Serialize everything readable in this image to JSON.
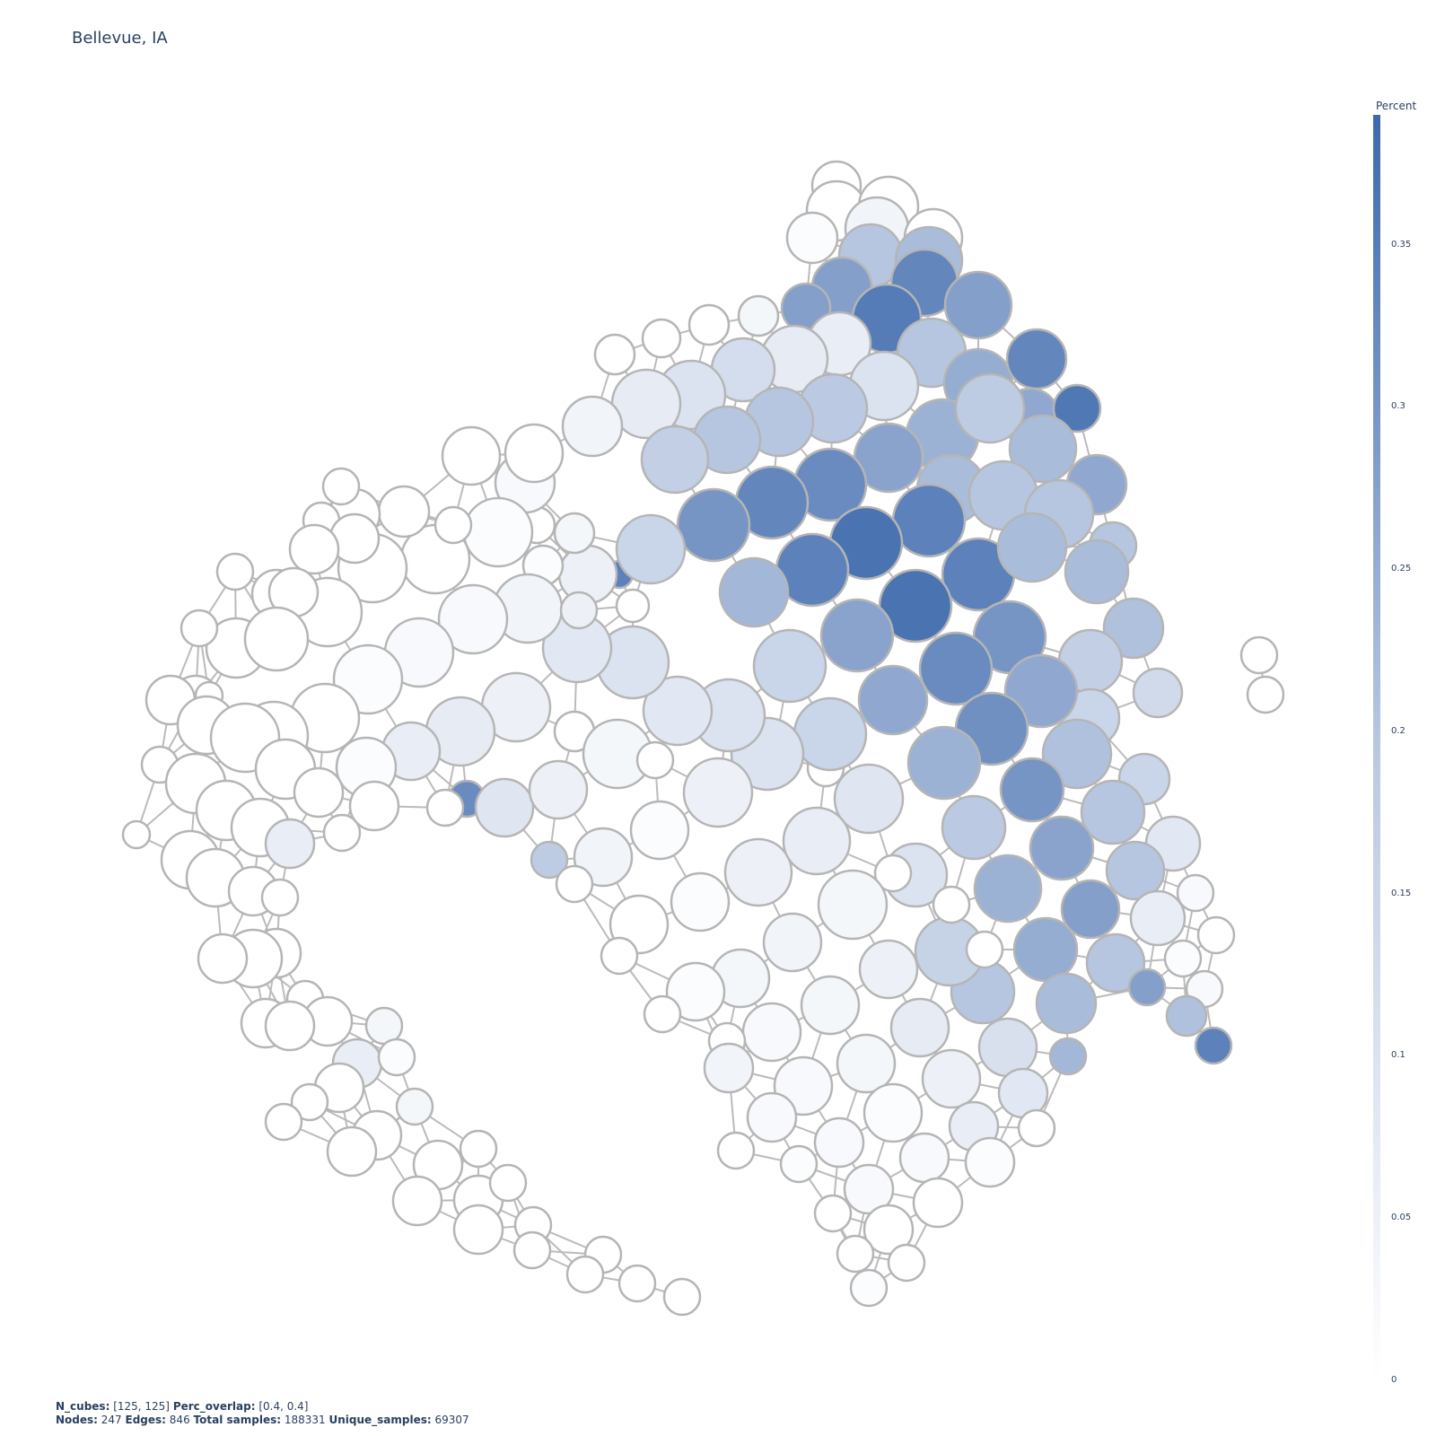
{
  "title": "Bellevue, IA",
  "colorbar": {
    "title": "Percent",
    "ticks": [
      "0.35",
      "0.3",
      "0.25",
      "0.2",
      "0.15",
      "0.1",
      "0.05",
      "0"
    ],
    "tick_values": [
      0.35,
      0.3,
      0.25,
      0.2,
      0.15,
      0.1,
      0.05,
      0
    ],
    "range": [
      0,
      0.39
    ],
    "color_low": "#ffffff",
    "color_high": "#3d69ad"
  },
  "footer": {
    "line1": [
      {
        "label": "N_cubes:",
        "value": " [125, 125] "
      },
      {
        "label": "Perc_overlap:",
        "value": " [0.4, 0.4]"
      }
    ],
    "line2": [
      {
        "label": "Nodes:",
        "value": " 247 "
      },
      {
        "label": "Edges:",
        "value": " 846 "
      },
      {
        "label": "Total samples:",
        "value": " 188331 "
      },
      {
        "label": "Unique_samples:",
        "value": " 69307"
      }
    ]
  },
  "chart_data": {
    "type": "network",
    "title": "Bellevue, IA",
    "color_variable": "Percent",
    "node_count": 247,
    "edge_count": 846,
    "edge_color": "#bbbbbb",
    "node_border_color": "#b5b5b5"
  }
}
